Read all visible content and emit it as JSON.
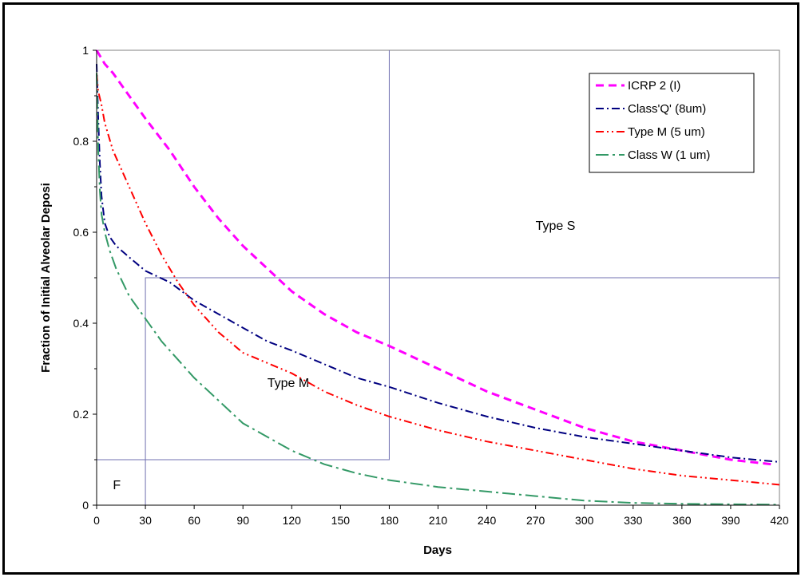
{
  "chart_data": {
    "type": "line",
    "title": "",
    "xlabel": "Days",
    "ylabel": "Fraction of Initial Alveolar Deposi",
    "xlim": [
      0,
      420
    ],
    "ylim": [
      0,
      1
    ],
    "x_ticks": [
      0,
      30,
      60,
      90,
      120,
      150,
      180,
      210,
      240,
      270,
      300,
      330,
      360,
      390,
      420
    ],
    "y_ticks": [
      0,
      0.2,
      0.4,
      0.6,
      0.8,
      1
    ],
    "y_tick_labels": [
      "0",
      "0.2",
      "0.4",
      "0.6",
      "0.8",
      "1"
    ],
    "grid": false,
    "legend_position": "top-right",
    "series": [
      {
        "name": "ICRP 2 (I)",
        "color": "#ff00ff",
        "dash": "dash",
        "x": [
          0,
          5,
          10,
          20,
          30,
          45,
          60,
          75,
          90,
          105,
          120,
          140,
          160,
          180,
          210,
          240,
          270,
          300,
          330,
          360,
          390,
          415
        ],
        "y": [
          1.0,
          0.97,
          0.95,
          0.9,
          0.85,
          0.78,
          0.7,
          0.63,
          0.57,
          0.52,
          0.47,
          0.42,
          0.38,
          0.35,
          0.3,
          0.25,
          0.21,
          0.17,
          0.14,
          0.12,
          0.1,
          0.09
        ]
      },
      {
        "name": "Class'Q' (8um)",
        "color": "#000080",
        "dash": "dash-dot",
        "x": [
          0,
          1,
          2,
          3,
          5,
          8,
          12,
          20,
          30,
          45,
          60,
          75,
          90,
          105,
          120,
          140,
          160,
          180,
          210,
          240,
          270,
          300,
          330,
          360,
          390,
          420
        ],
        "y": [
          0.97,
          0.85,
          0.75,
          0.68,
          0.62,
          0.59,
          0.57,
          0.545,
          0.515,
          0.49,
          0.45,
          0.42,
          0.39,
          0.36,
          0.34,
          0.31,
          0.28,
          0.26,
          0.225,
          0.195,
          0.17,
          0.15,
          0.135,
          0.12,
          0.105,
          0.095
        ]
      },
      {
        "name": "Type M (5 um)",
        "color": "#ff0000",
        "dash": "dash-dot-dot",
        "x": [
          0,
          1,
          3,
          5,
          10,
          20,
          30,
          40,
          50,
          60,
          75,
          90,
          100,
          120,
          140,
          160,
          180,
          210,
          240,
          270,
          300,
          330,
          360,
          390,
          420
        ],
        "y": [
          0.95,
          0.91,
          0.88,
          0.84,
          0.78,
          0.7,
          0.62,
          0.55,
          0.49,
          0.44,
          0.38,
          0.335,
          0.32,
          0.29,
          0.25,
          0.22,
          0.195,
          0.165,
          0.14,
          0.12,
          0.1,
          0.08,
          0.065,
          0.055,
          0.045
        ]
      },
      {
        "name": "Class W (1 um)",
        "color": "#339966",
        "dash": "long-dash-dot",
        "x": [
          0,
          1,
          2,
          3,
          5,
          8,
          12,
          20,
          30,
          40,
          50,
          60,
          75,
          90,
          105,
          120,
          140,
          160,
          180,
          210,
          240,
          270,
          300,
          330,
          360,
          390,
          420
        ],
        "y": [
          0.95,
          0.78,
          0.69,
          0.64,
          0.6,
          0.56,
          0.52,
          0.46,
          0.41,
          0.36,
          0.32,
          0.28,
          0.23,
          0.18,
          0.15,
          0.12,
          0.09,
          0.07,
          0.055,
          0.04,
          0.03,
          0.02,
          0.01,
          0.005,
          0.003,
          0.002,
          0.001
        ]
      }
    ],
    "regions": [
      {
        "label": "Type S",
        "x_range": [
          0,
          180
        ],
        "y_range": [
          0.5,
          1
        ]
      },
      {
        "label": "Type M",
        "x_range": [
          30,
          180
        ],
        "y_range": [
          0.1,
          0.5
        ]
      },
      {
        "label": "F",
        "x_range": [
          0,
          30
        ],
        "y_range": [
          0,
          0.1
        ]
      }
    ]
  }
}
